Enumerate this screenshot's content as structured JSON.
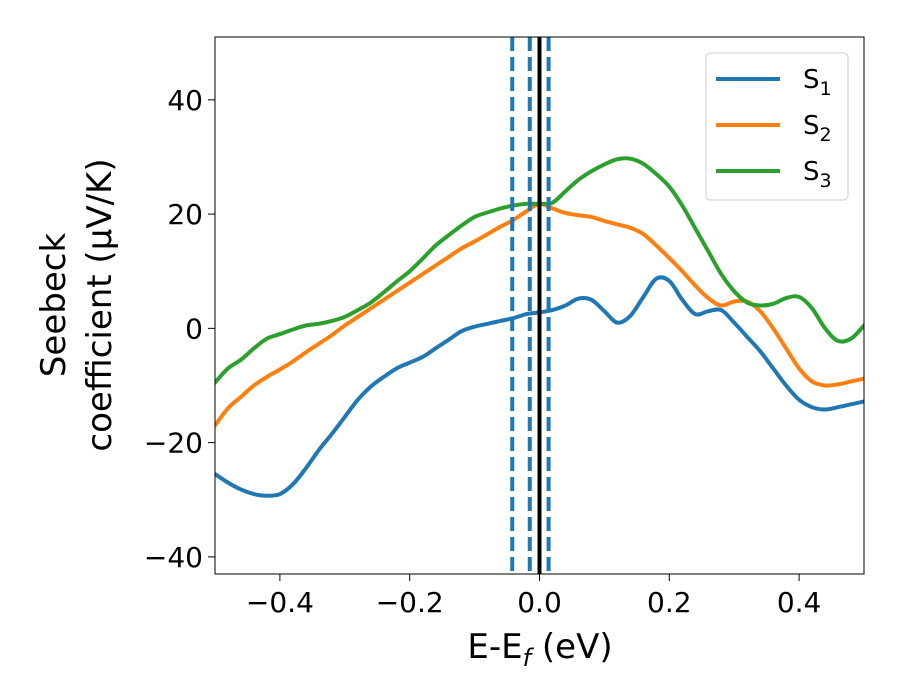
{
  "chart_data": {
    "type": "line",
    "xlabel": {
      "main": "E-E",
      "sub": "f",
      "tail": " (eV)"
    },
    "ylabel": {
      "line1": "Seebeck",
      "line2": "coefficient  (μV/K)"
    },
    "xlim": [
      -0.5,
      0.5
    ],
    "ylim": [
      -43,
      51
    ],
    "xticks": [
      -0.4,
      -0.2,
      0.0,
      0.2,
      0.4
    ],
    "xtick_labels": [
      "−0.4",
      "−0.2",
      "0.0",
      "0.2",
      "0.4"
    ],
    "yticks": [
      -40,
      -20,
      0,
      20,
      40
    ],
    "ytick_labels": [
      "−40",
      "−20",
      "0",
      "20",
      "40"
    ],
    "grid": false,
    "legend_position": "top-right",
    "vlines": [
      {
        "x": 0.0,
        "style": "solid",
        "color": "#000000"
      },
      {
        "x": -0.042,
        "style": "dashed",
        "color": "#1f77b4"
      },
      {
        "x": -0.015,
        "style": "dashed",
        "color": "#1f77b4"
      },
      {
        "x": 0.014,
        "style": "dashed",
        "color": "#1f77b4"
      }
    ],
    "series": [
      {
        "name": "S",
        "sub": "1",
        "color": "#1f77b4",
        "x": [
          -0.5,
          -0.48,
          -0.46,
          -0.44,
          -0.42,
          -0.4,
          -0.38,
          -0.36,
          -0.34,
          -0.32,
          -0.3,
          -0.28,
          -0.26,
          -0.24,
          -0.22,
          -0.2,
          -0.18,
          -0.16,
          -0.14,
          -0.12,
          -0.1,
          -0.08,
          -0.06,
          -0.04,
          -0.02,
          0.0,
          0.02,
          0.04,
          0.06,
          0.08,
          0.1,
          0.12,
          0.14,
          0.16,
          0.18,
          0.2,
          0.22,
          0.24,
          0.26,
          0.28,
          0.3,
          0.32,
          0.34,
          0.36,
          0.38,
          0.4,
          0.42,
          0.44,
          0.46,
          0.48,
          0.5
        ],
        "y": [
          -25.5,
          -27.0,
          -28.2,
          -29.0,
          -29.3,
          -29.0,
          -27.3,
          -24.5,
          -21.3,
          -18.5,
          -15.5,
          -12.5,
          -10.2,
          -8.5,
          -7.0,
          -6.0,
          -5.0,
          -3.5,
          -2.0,
          -0.5,
          0.3,
          0.8,
          1.3,
          1.8,
          2.5,
          2.8,
          3.2,
          4.0,
          5.2,
          5.0,
          3.0,
          1.0,
          2.2,
          5.5,
          8.7,
          8.3,
          5.0,
          2.5,
          3.0,
          3.2,
          1.0,
          -1.5,
          -4.0,
          -7.0,
          -10.0,
          -12.5,
          -13.8,
          -14.2,
          -13.8,
          -13.3,
          -12.8
        ]
      },
      {
        "name": "S",
        "sub": "2",
        "color": "#ff7f0e",
        "x": [
          -0.5,
          -0.48,
          -0.46,
          -0.44,
          -0.42,
          -0.4,
          -0.38,
          -0.36,
          -0.34,
          -0.32,
          -0.3,
          -0.28,
          -0.26,
          -0.24,
          -0.22,
          -0.2,
          -0.18,
          -0.16,
          -0.14,
          -0.12,
          -0.1,
          -0.08,
          -0.06,
          -0.04,
          -0.02,
          0.0,
          0.02,
          0.04,
          0.06,
          0.08,
          0.1,
          0.12,
          0.14,
          0.16,
          0.18,
          0.2,
          0.22,
          0.24,
          0.26,
          0.28,
          0.3,
          0.32,
          0.34,
          0.36,
          0.38,
          0.4,
          0.42,
          0.44,
          0.46,
          0.48,
          0.5
        ],
        "y": [
          -17.0,
          -14.0,
          -12.0,
          -10.0,
          -8.5,
          -7.2,
          -5.8,
          -4.2,
          -2.7,
          -1.2,
          0.5,
          2.0,
          3.5,
          5.0,
          6.5,
          8.0,
          9.5,
          11.0,
          12.5,
          14.0,
          15.2,
          16.5,
          17.8,
          19.0,
          20.5,
          21.8,
          21.0,
          20.2,
          19.8,
          19.5,
          18.8,
          18.2,
          17.6,
          16.5,
          14.5,
          12.3,
          10.0,
          7.5,
          5.3,
          4.0,
          4.7,
          4.7,
          3.0,
          0.0,
          -3.5,
          -7.0,
          -9.3,
          -10.0,
          -9.8,
          -9.3,
          -8.8
        ]
      },
      {
        "name": "S",
        "sub": "3",
        "color": "#2ca02c",
        "x": [
          -0.5,
          -0.48,
          -0.46,
          -0.44,
          -0.42,
          -0.4,
          -0.38,
          -0.36,
          -0.34,
          -0.32,
          -0.3,
          -0.28,
          -0.26,
          -0.24,
          -0.22,
          -0.2,
          -0.18,
          -0.16,
          -0.14,
          -0.12,
          -0.1,
          -0.08,
          -0.06,
          -0.04,
          -0.02,
          0.0,
          0.02,
          0.04,
          0.06,
          0.08,
          0.1,
          0.12,
          0.14,
          0.16,
          0.18,
          0.2,
          0.22,
          0.24,
          0.26,
          0.28,
          0.3,
          0.32,
          0.34,
          0.36,
          0.38,
          0.4,
          0.42,
          0.44,
          0.46,
          0.48,
          0.5
        ],
        "y": [
          -9.5,
          -7.0,
          -5.5,
          -3.5,
          -1.8,
          -1.0,
          -0.2,
          0.5,
          0.8,
          1.3,
          2.0,
          3.2,
          4.5,
          6.3,
          8.2,
          10.0,
          12.2,
          14.5,
          16.3,
          18.0,
          19.5,
          20.3,
          21.0,
          21.5,
          21.8,
          21.8,
          22.0,
          24.0,
          26.0,
          27.5,
          28.7,
          29.6,
          29.7,
          28.8,
          27.0,
          24.8,
          21.5,
          17.5,
          13.5,
          9.5,
          6.5,
          4.5,
          4.0,
          4.3,
          5.3,
          5.5,
          3.5,
          0.0,
          -2.2,
          -1.8,
          0.5
        ]
      }
    ]
  }
}
